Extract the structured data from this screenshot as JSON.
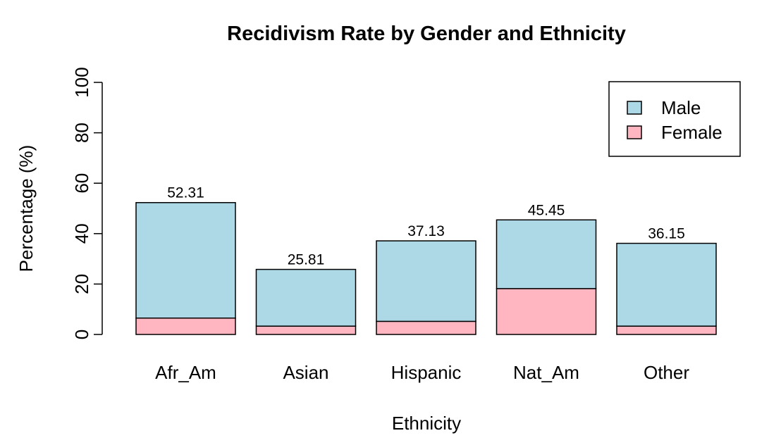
{
  "chart_data": {
    "type": "bar",
    "stacked": true,
    "title": "Recidivism Rate by Gender and Ethnicity",
    "xlabel": "Ethnicity",
    "ylabel": "Percentage (%)",
    "ylim": [
      0,
      100
    ],
    "yticks": [
      0,
      20,
      40,
      60,
      80,
      100
    ],
    "categories": [
      "Afr_Am",
      "Asian",
      "Hispanic",
      "Nat_Am",
      "Other"
    ],
    "series": [
      {
        "name": "Female",
        "color": "#ffb6c1",
        "values": [
          6.5,
          3.3,
          5.2,
          18.2,
          3.3
        ]
      },
      {
        "name": "Male",
        "color": "#add8e6",
        "values": [
          45.81,
          22.51,
          31.93,
          27.25,
          32.85
        ]
      }
    ],
    "totals": [
      "52.31",
      "25.81",
      "37.13",
      "45.45",
      "36.15"
    ],
    "legend": {
      "position": "top-right",
      "entries": [
        {
          "label": "Male",
          "color": "#add8e6"
        },
        {
          "label": "Female",
          "color": "#ffb6c1"
        }
      ]
    },
    "grid": false
  }
}
